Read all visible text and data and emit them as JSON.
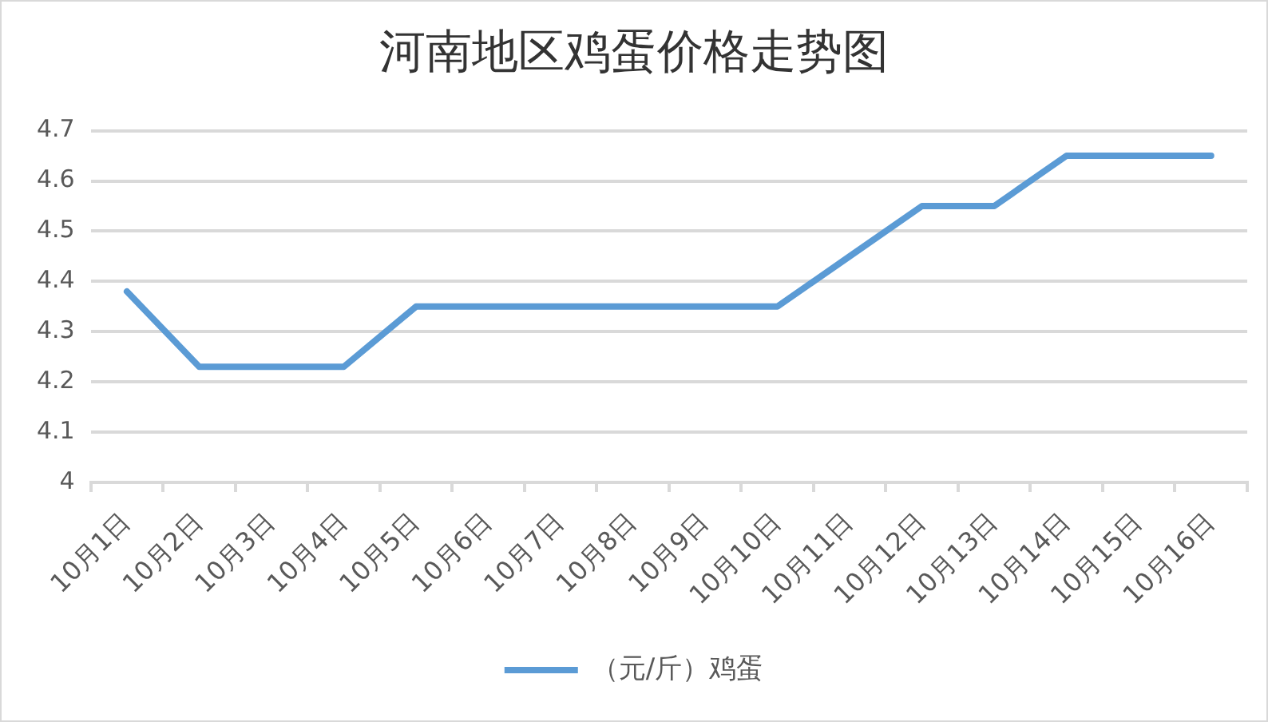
{
  "chart_data": {
    "type": "line",
    "title": "河南地区鸡蛋价格走势图",
    "categories": [
      "10月1日",
      "10月2日",
      "10月3日",
      "10月4日",
      "10月5日",
      "10月6日",
      "10月7日",
      "10月8日",
      "10月9日",
      "10月10日",
      "10月11日",
      "10月12日",
      "10月13日",
      "10月14日",
      "10月15日",
      "10月16日"
    ],
    "series": [
      {
        "name": "（元/斤）鸡蛋",
        "color": "#5b9bd5",
        "values": [
          4.38,
          4.23,
          4.23,
          4.23,
          4.35,
          4.35,
          4.35,
          4.35,
          4.35,
          4.35,
          4.45,
          4.55,
          4.55,
          4.65,
          4.65,
          4.65
        ]
      }
    ],
    "ylim": [
      4,
      4.7
    ],
    "yticks": [
      4,
      4.1,
      4.2,
      4.3,
      4.4,
      4.5,
      4.6,
      4.7
    ],
    "grid": "y",
    "legend": "bottom",
    "line_style": "solid"
  }
}
